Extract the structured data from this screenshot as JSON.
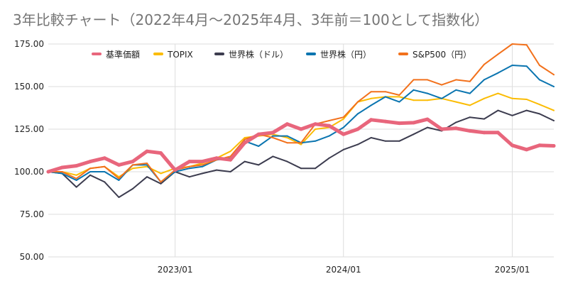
{
  "chart_data": {
    "type": "line",
    "title": "3年比較チャート（2022年4月～2025年4月、3年前＝100として指数化）",
    "xlabel": "",
    "ylabel": "",
    "ylim": [
      50,
      175
    ],
    "y_ticks": [
      "50.00",
      "75.00",
      "100.00",
      "125.00",
      "150.00",
      "175.00"
    ],
    "x_ticks": [
      {
        "label": "2023/01",
        "date": "2023-01-01"
      },
      {
        "label": "2024/01",
        "date": "2024-01-01"
      },
      {
        "label": "2025/01",
        "date": "2025-01-01"
      }
    ],
    "x": [
      "2022-04",
      "2022-05",
      "2022-06",
      "2022-07",
      "2022-08",
      "2022-09",
      "2022-10",
      "2022-11",
      "2022-12",
      "2023-01",
      "2023-02",
      "2023-03",
      "2023-04",
      "2023-05",
      "2023-06",
      "2023-07",
      "2023-08",
      "2023-09",
      "2023-10",
      "2023-11",
      "2023-12",
      "2024-01",
      "2024-02",
      "2024-03",
      "2024-04",
      "2024-05",
      "2024-06",
      "2024-07",
      "2024-08",
      "2024-09",
      "2024-10",
      "2024-11",
      "2024-12",
      "2025-01",
      "2025-02",
      "2025-03",
      "2025-04"
    ],
    "series": [
      {
        "name": "基準価額",
        "color": "#e8667c",
        "width": 5,
        "values": [
          100,
          102.5,
          103.5,
          106,
          108,
          104,
          106,
          112,
          111,
          101,
          106,
          106,
          108,
          107,
          117,
          122,
          123,
          128,
          125,
          128,
          127,
          122,
          125,
          130.5,
          129.5,
          128.5,
          128.8,
          130.8,
          125,
          125.5,
          124,
          123,
          123,
          115.5,
          113,
          115.5,
          115.2
        ]
      },
      {
        "name": "TOPIX",
        "color": "#fbbc04",
        "width": 2,
        "values": [
          100,
          100,
          98,
          102,
          103,
          97,
          102,
          103,
          99,
          102,
          103,
          105,
          108,
          112,
          120,
          121,
          122,
          120,
          116,
          125,
          126,
          131,
          141,
          143,
          144,
          144,
          142,
          142,
          143,
          141,
          139,
          143,
          146,
          143,
          142.5,
          139.5,
          136
        ]
      },
      {
        "name": "世界株（ドル）",
        "color": "#3c3c4f",
        "width": 2,
        "values": [
          100,
          99,
          91,
          98,
          94,
          85,
          90,
          97,
          93,
          100,
          97,
          99,
          101,
          100,
          106,
          104,
          109,
          106,
          102,
          102,
          108,
          113,
          116,
          120,
          118,
          118,
          122,
          126,
          124,
          129,
          132,
          131,
          136,
          133,
          136,
          134,
          130
        ]
      },
      {
        "name": "世界株（円）",
        "color": "#0b75b0",
        "width": 2,
        "values": [
          100,
          99,
          95,
          100,
          100,
          95,
          104,
          104,
          94,
          100,
          102,
          103,
          107,
          108,
          118,
          115,
          121,
          121,
          117,
          118,
          121,
          126,
          134,
          139,
          144,
          141,
          148,
          146,
          143,
          148,
          146,
          154,
          158,
          162.5,
          162,
          154,
          150
        ]
      },
      {
        "name": "S&P500（円）",
        "color": "#f2711c",
        "width": 2,
        "values": [
          100,
          100,
          96,
          102,
          103,
          96,
          104,
          105,
          94,
          101,
          103,
          104,
          107,
          109,
          119,
          122,
          120,
          117,
          117,
          128,
          130,
          132,
          141,
          147,
          147,
          145,
          154,
          154,
          151,
          154,
          153,
          163,
          169,
          175,
          174.5,
          162.5,
          157
        ]
      }
    ],
    "legend_position": "top",
    "grid": true
  }
}
